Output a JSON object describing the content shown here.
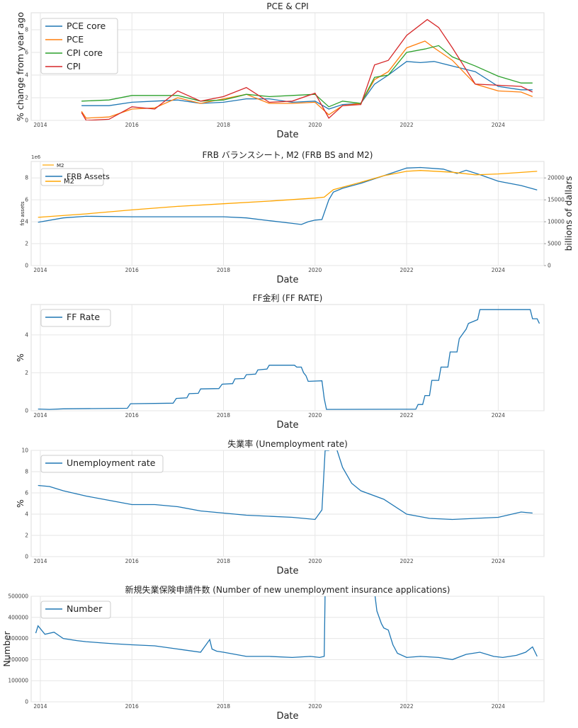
{
  "chart_data": [
    {
      "type": "line",
      "title": "PCE & CPI",
      "xlabel": "Date",
      "ylabel": "% change from year ago",
      "xlim": [
        2013.8,
        2025.0
      ],
      "ylim": [
        0,
        9.5
      ],
      "xticks": [
        "2014",
        "2016",
        "2018",
        "2020",
        "2022",
        "2024"
      ],
      "yticks": [
        "0",
        "2",
        "4",
        "6",
        "8"
      ],
      "legend": "top-left",
      "grid": true,
      "series": [
        {
          "name": "PCE core",
          "color": "#1f77b4",
          "x": [
            2014.9,
            2015.5,
            2016.0,
            2016.5,
            2017.0,
            2017.5,
            2018.0,
            2018.5,
            2019.0,
            2019.5,
            2020.0,
            2020.3,
            2020.6,
            2021.0,
            2021.3,
            2021.6,
            2022.0,
            2022.3,
            2022.6,
            2023.0,
            2023.5,
            2024.0,
            2024.5,
            2024.75
          ],
          "values": [
            1.3,
            1.3,
            1.6,
            1.7,
            1.8,
            1.5,
            1.6,
            1.9,
            1.9,
            1.6,
            1.7,
            1.0,
            1.4,
            1.5,
            3.2,
            4.0,
            5.2,
            5.1,
            5.2,
            4.8,
            4.3,
            3.0,
            2.7,
            2.7
          ]
        },
        {
          "name": "PCE",
          "color": "#ff7f0e",
          "x": [
            2014.9,
            2015.0,
            2015.5,
            2016.0,
            2016.5,
            2017.0,
            2017.5,
            2018.0,
            2018.5,
            2019.0,
            2019.5,
            2020.0,
            2020.3,
            2020.6,
            2021.0,
            2021.3,
            2021.6,
            2022.0,
            2022.4,
            2022.6,
            2023.0,
            2023.5,
            2024.0,
            2024.5,
            2024.75
          ],
          "values": [
            0.8,
            0.2,
            0.3,
            1.0,
            1.1,
            2.0,
            1.5,
            1.9,
            2.3,
            1.5,
            1.5,
            1.6,
            0.5,
            1.3,
            1.5,
            3.6,
            4.3,
            6.4,
            7.0,
            6.4,
            5.3,
            3.2,
            2.6,
            2.5,
            2.1
          ]
        },
        {
          "name": "CPI core",
          "color": "#2ca02c",
          "x": [
            2014.9,
            2015.5,
            2016.0,
            2016.5,
            2017.0,
            2017.5,
            2018.0,
            2018.5,
            2019.0,
            2019.5,
            2020.0,
            2020.3,
            2020.6,
            2021.0,
            2021.3,
            2021.6,
            2022.0,
            2022.4,
            2022.7,
            2023.0,
            2023.5,
            2024.0,
            2024.5,
            2024.75
          ],
          "values": [
            1.7,
            1.8,
            2.2,
            2.2,
            2.2,
            1.7,
            1.8,
            2.3,
            2.1,
            2.2,
            2.3,
            1.2,
            1.7,
            1.5,
            3.8,
            4.0,
            6.0,
            6.3,
            6.6,
            5.6,
            4.8,
            3.9,
            3.3,
            3.3
          ]
        },
        {
          "name": "CPI",
          "color": "#d62728",
          "x": [
            2014.9,
            2015.0,
            2015.5,
            2016.0,
            2016.5,
            2017.0,
            2017.5,
            2018.0,
            2018.5,
            2019.0,
            2019.5,
            2020.0,
            2020.3,
            2020.6,
            2021.0,
            2021.3,
            2021.6,
            2022.0,
            2022.45,
            2022.7,
            2023.0,
            2023.5,
            2024.0,
            2024.5,
            2024.75
          ],
          "values": [
            0.7,
            0.0,
            0.1,
            1.2,
            1.0,
            2.6,
            1.7,
            2.1,
            2.9,
            1.6,
            1.7,
            2.4,
            0.2,
            1.3,
            1.4,
            4.9,
            5.3,
            7.5,
            8.9,
            8.2,
            6.4,
            3.2,
            3.1,
            3.0,
            2.5
          ]
        }
      ]
    },
    {
      "type": "line",
      "title": "FRB バランスシート, M2 (FRB BS and M2)",
      "xlabel": "Date",
      "ylabel": "frb assets",
      "y2label": "billions of dallars",
      "xlim": [
        2013.8,
        2025.0
      ],
      "ylim": [
        0,
        9.5
      ],
      "y2lim": [
        0,
        23750
      ],
      "xticks": [
        "2014",
        "2016",
        "2018",
        "2020",
        "2022",
        "2024"
      ],
      "yticks": [
        "0",
        "2",
        "4",
        "6",
        "8"
      ],
      "y2ticks": [
        "0",
        "5000",
        "10000",
        "15000",
        "20000"
      ],
      "y_offset_label": "1e6",
      "grid": true,
      "legend_inner": {
        "label": "M2",
        "color": "#ffa500"
      },
      "legend": "top-left",
      "series": [
        {
          "name": "FRB Assets",
          "color": "#1f77b4",
          "axis": "left",
          "x": [
            2013.95,
            2014.5,
            2015.0,
            2016.0,
            2017.0,
            2018.0,
            2018.5,
            2019.0,
            2019.5,
            2019.7,
            2019.85,
            2020.0,
            2020.15,
            2020.3,
            2020.4,
            2020.6,
            2021.0,
            2021.5,
            2022.0,
            2022.3,
            2022.8,
            2023.1,
            2023.3,
            2023.6,
            2024.0,
            2024.5,
            2024.85
          ],
          "values": [
            3.95,
            4.35,
            4.5,
            4.45,
            4.45,
            4.45,
            4.35,
            4.1,
            3.85,
            3.75,
            4.0,
            4.15,
            4.2,
            6.0,
            6.7,
            7.05,
            7.5,
            8.2,
            8.9,
            8.95,
            8.8,
            8.4,
            8.7,
            8.3,
            7.7,
            7.3,
            6.9
          ]
        },
        {
          "name": "M2",
          "color": "#ffa500",
          "axis": "right",
          "x": [
            2013.95,
            2015.0,
            2016.0,
            2017.0,
            2018.0,
            2019.0,
            2020.0,
            2020.2,
            2020.4,
            2021.0,
            2021.5,
            2022.0,
            2022.3,
            2023.0,
            2023.5,
            2024.0,
            2024.85
          ],
          "values": [
            11000,
            11800,
            12700,
            13500,
            14100,
            14700,
            15400,
            15600,
            17300,
            19000,
            20500,
            21500,
            21700,
            21300,
            20700,
            20900,
            21500
          ]
        }
      ]
    },
    {
      "type": "line",
      "title": "FF金利 (FF RATE)",
      "xlabel": "Date",
      "ylabel": "%",
      "xlim": [
        2013.8,
        2025.0
      ],
      "ylim": [
        0,
        5.6
      ],
      "xticks": [
        "2014",
        "2016",
        "2018",
        "2020",
        "2022",
        "2024"
      ],
      "yticks": [
        "0",
        "2",
        "4"
      ],
      "legend": "top-left",
      "grid": true,
      "series": [
        {
          "name": "FF Rate",
          "color": "#1f77b4",
          "x": [
            2013.95,
            2014.2,
            2014.5,
            2015.9,
            2015.97,
            2016.9,
            2016.97,
            2017.2,
            2017.25,
            2017.45,
            2017.5,
            2017.9,
            2017.97,
            2018.2,
            2018.25,
            2018.45,
            2018.5,
            2018.7,
            2018.75,
            2018.95,
            2019.0,
            2019.55,
            2019.6,
            2019.7,
            2019.75,
            2019.8,
            2019.85,
            2020.15,
            2020.2,
            2020.25,
            2021.9,
            2022.2,
            2022.25,
            2022.35,
            2022.4,
            2022.5,
            2022.55,
            2022.7,
            2022.75,
            2022.9,
            2022.95,
            2023.1,
            2023.15,
            2023.3,
            2023.35,
            2023.55,
            2023.6,
            2024.7,
            2024.75,
            2024.85,
            2024.9
          ],
          "values": [
            0.09,
            0.07,
            0.1,
            0.13,
            0.37,
            0.4,
            0.65,
            0.68,
            0.9,
            0.92,
            1.15,
            1.17,
            1.4,
            1.43,
            1.68,
            1.7,
            1.9,
            1.93,
            2.15,
            2.2,
            2.4,
            2.4,
            2.3,
            2.3,
            2.0,
            1.85,
            1.55,
            1.58,
            0.65,
            0.07,
            0.08,
            0.08,
            0.33,
            0.33,
            0.8,
            0.8,
            1.6,
            1.6,
            2.3,
            2.3,
            3.1,
            3.1,
            3.8,
            4.3,
            4.6,
            4.8,
            5.33,
            5.33,
            4.85,
            4.85,
            4.6
          ]
        }
      ]
    },
    {
      "type": "line",
      "title": "失業率 (Unemployment rate)",
      "xlabel": "Date",
      "ylabel": "%",
      "xlim": [
        2013.8,
        2025.0
      ],
      "ylim": [
        0,
        10
      ],
      "xticks": [
        "2014",
        "2016",
        "2018",
        "2020",
        "2022",
        "2024"
      ],
      "yticks": [
        "0",
        "2",
        "4",
        "6",
        "8",
        "10"
      ],
      "legend": "top-left",
      "grid": true,
      "series": [
        {
          "name": "Unemployment rate",
          "color": "#1f77b4",
          "x": [
            2013.95,
            2014.2,
            2014.5,
            2015.0,
            2015.5,
            2016.0,
            2016.5,
            2017.0,
            2017.5,
            2018.0,
            2018.5,
            2019.0,
            2019.5,
            2020.0,
            2020.15,
            2020.22,
            2020.27,
            2020.3,
            2020.4,
            2020.6,
            2020.8,
            2021.0,
            2021.5,
            2022.0,
            2022.5,
            2023.0,
            2023.5,
            2024.0,
            2024.5,
            2024.75
          ],
          "values": [
            6.7,
            6.6,
            6.2,
            5.7,
            5.3,
            4.9,
            4.9,
            4.7,
            4.3,
            4.1,
            3.9,
            3.8,
            3.7,
            3.5,
            4.4,
            10.0,
            10.0,
            10.0,
            11.1,
            8.4,
            6.9,
            6.2,
            5.4,
            4.0,
            3.6,
            3.5,
            3.6,
            3.7,
            4.2,
            4.1
          ]
        }
      ]
    },
    {
      "type": "line",
      "title": "新規失業保険申請件数 (Number of new unemployment insurance applications)",
      "xlabel": "Date",
      "ylabel": "Number",
      "xlim": [
        2013.8,
        2025.0
      ],
      "ylim": [
        0,
        500000
      ],
      "xticks": [
        "2014",
        "2016",
        "2018",
        "2020",
        "2022",
        "2024"
      ],
      "yticks": [
        "0",
        "100000",
        "200000",
        "300000",
        "400000",
        "500000"
      ],
      "legend": "top-left",
      "grid": true,
      "series": [
        {
          "name": "Number",
          "color": "#1f77b4",
          "x": [
            2013.9,
            2013.95,
            2014.1,
            2014.3,
            2014.5,
            2014.8,
            2015.0,
            2015.3,
            2015.6,
            2016.0,
            2016.5,
            2017.0,
            2017.5,
            2017.7,
            2017.75,
            2017.85,
            2018.0,
            2018.5,
            2019.0,
            2019.5,
            2019.9,
            2020.1,
            2020.2,
            2020.22,
            2020.3,
            2021.3,
            2021.35,
            2021.45,
            2021.5,
            2021.6,
            2021.7,
            2021.8,
            2022.0,
            2022.3,
            2022.7,
            2023.0,
            2023.3,
            2023.6,
            2023.9,
            2024.1,
            2024.4,
            2024.6,
            2024.75,
            2024.85
          ],
          "values": [
            325000,
            360000,
            320000,
            330000,
            300000,
            290000,
            285000,
            280000,
            275000,
            270000,
            265000,
            250000,
            235000,
            295000,
            250000,
            240000,
            235000,
            215000,
            215000,
            210000,
            215000,
            210000,
            215000,
            520000,
            520000,
            520000,
            430000,
            370000,
            350000,
            340000,
            270000,
            230000,
            210000,
            215000,
            210000,
            200000,
            225000,
            235000,
            215000,
            210000,
            220000,
            235000,
            260000,
            215000
          ]
        }
      ]
    }
  ]
}
